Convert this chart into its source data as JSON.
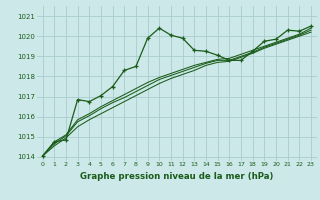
{
  "title": "",
  "xlabel": "Graphe pression niveau de la mer (hPa)",
  "bg_color": "#cce8e8",
  "grid_color": "#aacccc",
  "line_color": "#1a5c1a",
  "text_color": "#1a5c1a",
  "ylim": [
    1013.8,
    1021.5
  ],
  "xlim": [
    -0.5,
    23.5
  ],
  "yticks": [
    1014,
    1015,
    1016,
    1017,
    1018,
    1019,
    1020,
    1021
  ],
  "xticks": [
    0,
    1,
    2,
    3,
    4,
    5,
    6,
    7,
    8,
    9,
    10,
    11,
    12,
    13,
    14,
    15,
    16,
    17,
    18,
    19,
    20,
    21,
    22,
    23
  ],
  "series": [
    [
      1014.05,
      1014.75,
      1014.85,
      1016.85,
      1016.75,
      1017.05,
      1017.5,
      1018.3,
      1018.5,
      1019.9,
      1020.4,
      1020.05,
      1019.9,
      1019.3,
      1019.25,
      1019.05,
      1018.8,
      1018.8,
      1019.25,
      1019.75,
      1019.85,
      1020.3,
      1020.25,
      1020.5
    ],
    [
      1014.05,
      1014.55,
      1014.95,
      1015.5,
      1015.85,
      1016.15,
      1016.45,
      1016.75,
      1017.05,
      1017.35,
      1017.65,
      1017.9,
      1018.1,
      1018.3,
      1018.55,
      1018.7,
      1018.75,
      1018.95,
      1019.15,
      1019.4,
      1019.6,
      1019.8,
      1020.0,
      1020.2
    ],
    [
      1014.05,
      1014.65,
      1015.05,
      1015.75,
      1016.05,
      1016.4,
      1016.7,
      1016.95,
      1017.25,
      1017.55,
      1017.85,
      1018.05,
      1018.25,
      1018.45,
      1018.65,
      1018.8,
      1018.8,
      1019.0,
      1019.2,
      1019.45,
      1019.65,
      1019.85,
      1020.05,
      1020.3
    ],
    [
      1014.05,
      1014.75,
      1015.1,
      1015.85,
      1016.15,
      1016.5,
      1016.8,
      1017.1,
      1017.4,
      1017.7,
      1017.95,
      1018.15,
      1018.35,
      1018.55,
      1018.7,
      1018.85,
      1018.9,
      1019.1,
      1019.3,
      1019.5,
      1019.7,
      1019.9,
      1020.1,
      1020.4
    ]
  ]
}
